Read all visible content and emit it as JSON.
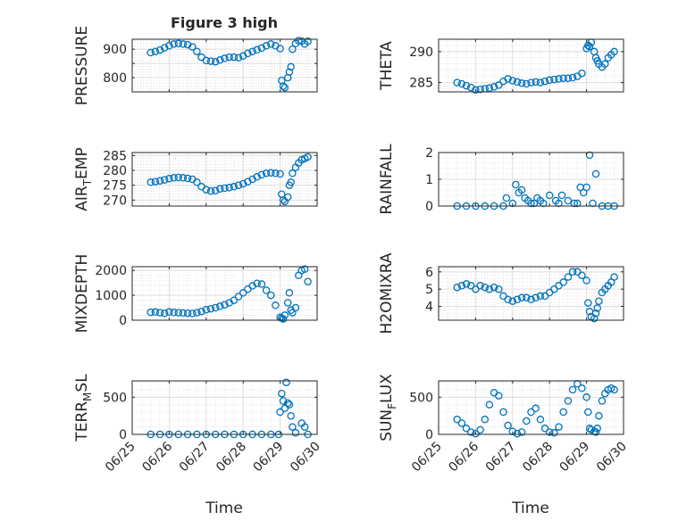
{
  "figure": {
    "title": "Figure 3 high",
    "shared_xlabel": "Time",
    "x_tick_labels": [
      "06/25",
      "06/26",
      "06/27",
      "06/28",
      "06/29",
      "06/30"
    ]
  },
  "chart_data": [
    {
      "type": "scatter",
      "title": "Figure 3 high",
      "xlabel": "",
      "ylabel": "PRESSURE",
      "x_ticks": [
        "06/25",
        "06/26",
        "06/27",
        "06/28",
        "06/29",
        "06/30"
      ],
      "xlim": [
        "06/25",
        "06/30"
      ],
      "ylim": [
        750,
        935
      ],
      "y_ticks": [
        800,
        850,
        900
      ],
      "y_tick_labels": [
        "800",
        "",
        "900"
      ],
      "grid": true,
      "series": [
        {
          "x": [
            "06/25 12:00",
            "06/25 15:00",
            "06/25 18:00",
            "06/25 21:00",
            "06/26 00:00",
            "06/26 03:00",
            "06/26 06:00",
            "06/26 09:00",
            "06/26 12:00",
            "06/26 15:00",
            "06/26 18:00",
            "06/26 21:00",
            "06/27 00:00",
            "06/27 03:00",
            "06/27 06:00",
            "06/27 09:00",
            "06/27 12:00",
            "06/27 15:00",
            "06/27 18:00",
            "06/27 21:00",
            "06/28 00:00",
            "06/28 03:00",
            "06/28 06:00",
            "06/28 09:00",
            "06/28 12:00",
            "06/28 15:00",
            "06/28 18:00",
            "06/28 21:00",
            "06/29 00:00",
            "06/29 01:00",
            "06/29 02:00",
            "06/29 03:00",
            "06/29 05:00",
            "06/29 06:00",
            "06/29 07:00",
            "06/29 08:00",
            "06/29 10:00",
            "06/29 12:00",
            "06/29 14:00",
            "06/29 16:00",
            "06/29 18:00"
          ],
          "y": [
            888,
            892,
            897,
            905,
            912,
            918,
            920,
            918,
            916,
            908,
            892,
            872,
            860,
            858,
            856,
            862,
            868,
            872,
            872,
            870,
            876,
            885,
            892,
            898,
            904,
            912,
            918,
            912,
            902,
            790,
            770,
            765,
            800,
            820,
            838,
            900,
            920,
            930,
            928,
            918,
            928
          ]
        }
      ]
    },
    {
      "type": "scatter",
      "xlabel": "",
      "ylabel": "THETA",
      "x_ticks": [
        "06/25",
        "06/26",
        "06/27",
        "06/28",
        "06/29",
        "06/30"
      ],
      "xlim": [
        "06/25",
        "06/30"
      ],
      "ylim": [
        283.5,
        292
      ],
      "y_ticks": [
        285,
        290
      ],
      "grid": true,
      "series": [
        {
          "x": [
            "06/25 12:00",
            "06/25 15:00",
            "06/25 18:00",
            "06/25 21:00",
            "06/26 00:00",
            "06/26 03:00",
            "06/26 06:00",
            "06/26 09:00",
            "06/26 12:00",
            "06/26 15:00",
            "06/26 18:00",
            "06/26 21:00",
            "06/27 00:00",
            "06/27 03:00",
            "06/27 06:00",
            "06/27 09:00",
            "06/27 12:00",
            "06/27 15:00",
            "06/27 18:00",
            "06/27 21:00",
            "06/28 00:00",
            "06/28 03:00",
            "06/28 06:00",
            "06/28 09:00",
            "06/28 12:00",
            "06/28 15:00",
            "06/28 18:00",
            "06/28 21:00",
            "06/29 00:00",
            "06/29 01:00",
            "06/29 02:00",
            "06/29 03:00",
            "06/29 05:00",
            "06/29 06:00",
            "06/29 07:00",
            "06/29 08:00",
            "06/29 10:00",
            "06/29 12:00",
            "06/29 14:00",
            "06/29 16:00",
            "06/29 18:00"
          ],
          "y": [
            285.0,
            284.8,
            284.5,
            284.2,
            283.8,
            283.9,
            284.0,
            284.1,
            284.3,
            284.6,
            285.2,
            285.6,
            285.3,
            285.1,
            284.9,
            284.8,
            285.0,
            285.1,
            285.0,
            285.2,
            285.4,
            285.5,
            285.6,
            285.7,
            285.7,
            285.8,
            286.0,
            286.5,
            290.5,
            291.0,
            290.8,
            291.5,
            290.0,
            289.0,
            288.5,
            288.0,
            287.5,
            288.0,
            289.0,
            289.5,
            290.0
          ]
        }
      ]
    },
    {
      "type": "scatter",
      "xlabel": "",
      "ylabel": "AIR_TEMP",
      "x_ticks": [
        "06/25",
        "06/26",
        "06/27",
        "06/28",
        "06/29",
        "06/30"
      ],
      "xlim": [
        "06/25",
        "06/30"
      ],
      "ylim": [
        268,
        286
      ],
      "y_ticks": [
        270,
        275,
        280,
        285
      ],
      "grid": true,
      "series": [
        {
          "x": [
            "06/25 12:00",
            "06/25 15:00",
            "06/25 18:00",
            "06/25 21:00",
            "06/26 00:00",
            "06/26 03:00",
            "06/26 06:00",
            "06/26 09:00",
            "06/26 12:00",
            "06/26 15:00",
            "06/26 18:00",
            "06/26 21:00",
            "06/27 00:00",
            "06/27 03:00",
            "06/27 06:00",
            "06/27 09:00",
            "06/27 12:00",
            "06/27 15:00",
            "06/27 18:00",
            "06/27 21:00",
            "06/28 00:00",
            "06/28 03:00",
            "06/28 06:00",
            "06/28 09:00",
            "06/28 12:00",
            "06/28 15:00",
            "06/28 18:00",
            "06/28 21:00",
            "06/29 00:00",
            "06/29 01:00",
            "06/29 02:00",
            "06/29 03:00",
            "06/29 05:00",
            "06/29 06:00",
            "06/29 07:00",
            "06/29 08:00",
            "06/29 10:00",
            "06/29 12:00",
            "06/29 14:00",
            "06/29 16:00",
            "06/29 18:00"
          ],
          "y": [
            276.0,
            276.2,
            276.5,
            276.8,
            277.2,
            277.5,
            277.6,
            277.5,
            277.3,
            277.0,
            276.0,
            274.5,
            273.5,
            273.0,
            273.2,
            273.8,
            274.0,
            274.2,
            274.5,
            275.0,
            275.5,
            276.2,
            277.0,
            277.8,
            278.5,
            279.0,
            279.2,
            279.0,
            278.8,
            272.0,
            270.0,
            269.5,
            271.0,
            275.0,
            276.0,
            279.0,
            281.0,
            282.5,
            283.5,
            284.0,
            284.5
          ]
        }
      ]
    },
    {
      "type": "scatter",
      "xlabel": "",
      "ylabel": "RAINFALL",
      "x_ticks": [
        "06/25",
        "06/26",
        "06/27",
        "06/28",
        "06/29",
        "06/30"
      ],
      "xlim": [
        "06/25",
        "06/30"
      ],
      "ylim": [
        0,
        2
      ],
      "y_ticks": [
        0,
        1,
        2
      ],
      "grid": true,
      "series": [
        {
          "x": [
            "06/25 12:00",
            "06/25 18:00",
            "06/26 00:00",
            "06/26 06:00",
            "06/26 12:00",
            "06/26 18:00",
            "06/26 20:00",
            "06/27 00:00",
            "06/27 02:00",
            "06/27 04:00",
            "06/27 06:00",
            "06/27 08:00",
            "06/27 10:00",
            "06/27 12:00",
            "06/27 14:00",
            "06/27 16:00",
            "06/27 18:00",
            "06/27 20:00",
            "06/28 00:00",
            "06/28 04:00",
            "06/28 06:00",
            "06/28 08:00",
            "06/28 12:00",
            "06/28 16:00",
            "06/28 18:00",
            "06/28 20:00",
            "06/28 22:00",
            "06/29 00:00",
            "06/29 02:00",
            "06/29 04:00",
            "06/29 06:00",
            "06/29 10:00",
            "06/29 14:00",
            "06/29 18:00"
          ],
          "y": [
            0,
            0,
            0,
            0,
            0,
            0,
            0.3,
            0.1,
            0.8,
            0.5,
            0.6,
            0.3,
            0.2,
            0.1,
            0.1,
            0.3,
            0.2,
            0.1,
            0.4,
            0.2,
            0.1,
            0.4,
            0.2,
            0.1,
            0.1,
            0.7,
            0.5,
            0.7,
            1.9,
            0.1,
            1.2,
            0,
            0,
            0
          ]
        }
      ]
    },
    {
      "type": "scatter",
      "xlabel": "",
      "ylabel": "MIXDEPTH",
      "x_ticks": [
        "06/25",
        "06/26",
        "06/27",
        "06/28",
        "06/29",
        "06/30"
      ],
      "xlim": [
        "06/25",
        "06/30"
      ],
      "ylim": [
        0,
        2150
      ],
      "y_ticks": [
        0,
        1000,
        2000
      ],
      "grid": true,
      "series": [
        {
          "x": [
            "06/25 12:00",
            "06/25 15:00",
            "06/25 18:00",
            "06/25 21:00",
            "06/26 00:00",
            "06/26 03:00",
            "06/26 06:00",
            "06/26 09:00",
            "06/26 12:00",
            "06/26 15:00",
            "06/26 18:00",
            "06/26 21:00",
            "06/27 00:00",
            "06/27 03:00",
            "06/27 06:00",
            "06/27 09:00",
            "06/27 12:00",
            "06/27 15:00",
            "06/27 18:00",
            "06/27 21:00",
            "06/28 00:00",
            "06/28 03:00",
            "06/28 06:00",
            "06/28 09:00",
            "06/28 12:00",
            "06/28 15:00",
            "06/28 18:00",
            "06/28 21:00",
            "06/29 00:00",
            "06/29 01:00",
            "06/29 02:00",
            "06/29 03:00",
            "06/29 05:00",
            "06/29 06:00",
            "06/29 07:00",
            "06/29 08:00",
            "06/29 10:00",
            "06/29 12:00",
            "06/29 14:00",
            "06/29 16:00",
            "06/29 18:00"
          ],
          "y": [
            320,
            330,
            300,
            280,
            330,
            310,
            300,
            290,
            280,
            270,
            300,
            350,
            420,
            460,
            500,
            560,
            620,
            700,
            800,
            950,
            1100,
            1250,
            1380,
            1480,
            1450,
            1200,
            1000,
            600,
            120,
            80,
            50,
            200,
            700,
            1100,
            400,
            300,
            500,
            1800,
            2000,
            2050,
            1550
          ]
        }
      ]
    },
    {
      "type": "scatter",
      "xlabel": "",
      "ylabel": "H2OMIXRA",
      "x_ticks": [
        "06/25",
        "06/26",
        "06/27",
        "06/28",
        "06/29",
        "06/30"
      ],
      "xlim": [
        "06/25",
        "06/30"
      ],
      "ylim": [
        3.2,
        6.3
      ],
      "y_ticks": [
        4,
        5,
        6
      ],
      "grid": true,
      "series": [
        {
          "x": [
            "06/25 12:00",
            "06/25 15:00",
            "06/25 18:00",
            "06/25 21:00",
            "06/26 00:00",
            "06/26 03:00",
            "06/26 06:00",
            "06/26 09:00",
            "06/26 12:00",
            "06/26 15:00",
            "06/26 18:00",
            "06/26 21:00",
            "06/27 00:00",
            "06/27 03:00",
            "06/27 06:00",
            "06/27 09:00",
            "06/27 12:00",
            "06/27 15:00",
            "06/27 18:00",
            "06/27 21:00",
            "06/28 00:00",
            "06/28 03:00",
            "06/28 06:00",
            "06/28 09:00",
            "06/28 12:00",
            "06/28 15:00",
            "06/28 18:00",
            "06/28 21:00",
            "06/29 00:00",
            "06/29 01:00",
            "06/29 02:00",
            "06/29 03:00",
            "06/29 05:00",
            "06/29 06:00",
            "06/29 07:00",
            "06/29 08:00",
            "06/29 10:00",
            "06/29 12:00",
            "06/29 14:00",
            "06/29 16:00",
            "06/29 18:00"
          ],
          "y": [
            5.1,
            5.2,
            5.3,
            5.2,
            5.0,
            5.2,
            5.1,
            5.0,
            5.1,
            5.0,
            4.6,
            4.4,
            4.3,
            4.4,
            4.5,
            4.5,
            4.4,
            4.5,
            4.6,
            4.6,
            4.8,
            5.0,
            5.2,
            5.4,
            5.7,
            6.0,
            6.0,
            5.8,
            5.5,
            4.2,
            3.7,
            3.4,
            3.3,
            3.6,
            3.9,
            4.3,
            4.8,
            5.0,
            5.2,
            5.4,
            5.7
          ]
        }
      ]
    },
    {
      "type": "scatter",
      "xlabel": "Time",
      "ylabel": "TERR_MSL",
      "x_ticks": [
        "06/25",
        "06/26",
        "06/27",
        "06/28",
        "06/29",
        "06/30"
      ],
      "xlim": [
        "06/25",
        "06/30"
      ],
      "ylim": [
        0,
        720
      ],
      "y_ticks": [
        0,
        500
      ],
      "grid": true,
      "series": [
        {
          "x": [
            "06/25 12:00",
            "06/25 18:00",
            "06/26 00:00",
            "06/26 06:00",
            "06/26 12:00",
            "06/26 18:00",
            "06/27 00:00",
            "06/27 06:00",
            "06/27 12:00",
            "06/27 18:00",
            "06/28 00:00",
            "06/28 06:00",
            "06/28 12:00",
            "06/28 18:00",
            "06/28 23:00",
            "06/29 00:00",
            "06/29 01:00",
            "06/29 02:00",
            "06/29 03:00",
            "06/29 04:00",
            "06/29 05:00",
            "06/29 06:00",
            "06/29 07:00",
            "06/29 08:00",
            "06/29 10:00",
            "06/29 14:00",
            "06/29 16:00",
            "06/29 18:00"
          ],
          "y": [
            0,
            0,
            0,
            0,
            0,
            0,
            0,
            0,
            0,
            0,
            0,
            0,
            0,
            0,
            0,
            300,
            550,
            450,
            350,
            700,
            420,
            400,
            250,
            100,
            20,
            150,
            100,
            0
          ]
        }
      ]
    },
    {
      "type": "scatter",
      "xlabel": "Time",
      "ylabel": "SUN_FLUX",
      "x_ticks": [
        "06/25",
        "06/26",
        "06/27",
        "06/28",
        "06/29",
        "06/30"
      ],
      "xlim": [
        "06/25",
        "06/30"
      ],
      "ylim": [
        0,
        720
      ],
      "y_ticks": [
        0,
        500
      ],
      "grid": true,
      "series": [
        {
          "x": [
            "06/25 12:00",
            "06/25 15:00",
            "06/25 18:00",
            "06/25 21:00",
            "06/26 00:00",
            "06/26 03:00",
            "06/26 06:00",
            "06/26 09:00",
            "06/26 12:00",
            "06/26 15:00",
            "06/26 18:00",
            "06/26 21:00",
            "06/27 00:00",
            "06/27 03:00",
            "06/27 06:00",
            "06/27 09:00",
            "06/27 12:00",
            "06/27 15:00",
            "06/27 18:00",
            "06/27 21:00",
            "06/28 00:00",
            "06/28 03:00",
            "06/28 06:00",
            "06/28 09:00",
            "06/28 12:00",
            "06/28 15:00",
            "06/28 18:00",
            "06/28 21:00",
            "06/29 00:00",
            "06/29 01:00",
            "06/29 02:00",
            "06/29 03:00",
            "06/29 05:00",
            "06/29 06:00",
            "06/29 07:00",
            "06/29 08:00",
            "06/29 10:00",
            "06/29 12:00",
            "06/29 14:00",
            "06/29 16:00",
            "06/29 18:00"
          ],
          "y": [
            200,
            150,
            80,
            30,
            10,
            60,
            200,
            400,
            560,
            520,
            300,
            120,
            40,
            10,
            30,
            180,
            300,
            350,
            200,
            80,
            30,
            20,
            100,
            300,
            450,
            600,
            680,
            620,
            500,
            300,
            80,
            60,
            40,
            30,
            80,
            250,
            450,
            550,
            600,
            620,
            600
          ]
        }
      ]
    }
  ],
  "colors": {
    "marker": "#0072bd",
    "axis": "#262626",
    "grid": "#dedede",
    "background": "#ffffff"
  }
}
